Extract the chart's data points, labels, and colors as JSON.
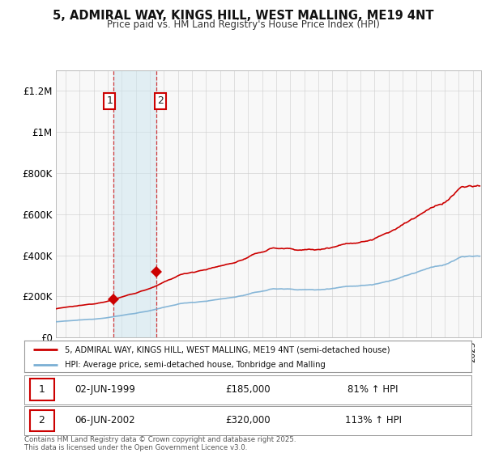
{
  "title": "5, ADMIRAL WAY, KINGS HILL, WEST MALLING, ME19 4NT",
  "subtitle": "Price paid vs. HM Land Registry's House Price Index (HPI)",
  "ylabel_ticks": [
    "£0",
    "£200K",
    "£400K",
    "£600K",
    "£800K",
    "£1M",
    "£1.2M"
  ],
  "ytick_values": [
    0,
    200000,
    400000,
    600000,
    800000,
    1000000,
    1200000
  ],
  "ylim": [
    0,
    1300000
  ],
  "xlim_start": 1995.3,
  "xlim_end": 2025.6,
  "purchase1_x": 1999.42,
  "purchase1_y": 185000,
  "purchase2_x": 2002.43,
  "purchase2_y": 320000,
  "vline1_x": 1999.42,
  "vline2_x": 2002.43,
  "shade_color": "#cce5f0",
  "shade_alpha": 0.5,
  "legend_line1": "5, ADMIRAL WAY, KINGS HILL, WEST MALLING, ME19 4NT (semi-detached house)",
  "legend_line2": "HPI: Average price, semi-detached house, Tonbridge and Malling",
  "price_line_color": "#cc0000",
  "hpi_line_color": "#7aafd4",
  "annot1_date": "02-JUN-1999",
  "annot1_price": "£185,000",
  "annot1_hpi": "81% ↑ HPI",
  "annot2_date": "06-JUN-2002",
  "annot2_price": "£320,000",
  "annot2_hpi": "113% ↑ HPI",
  "footer": "Contains HM Land Registry data © Crown copyright and database right 2025.\nThis data is licensed under the Open Government Licence v3.0.",
  "background_color": "#ffffff",
  "plot_bg_color": "#f8f8f8"
}
